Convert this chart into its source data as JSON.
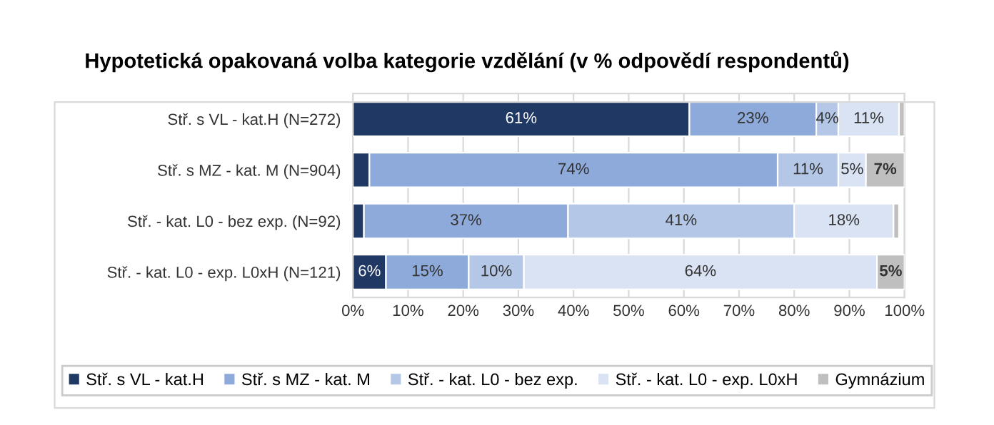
{
  "chart_data": {
    "type": "bar",
    "orientation": "horizontal",
    "stacked": true,
    "title": "Hypotetická opakovaná volba kategorie vzdělání (v % odpovědí respondentů)",
    "categories": [
      "Stř. s VL - kat.H (N=272)",
      "Stř. s MZ - kat. M (N=904)",
      "Stř. - kat. L0 - bez exp. (N=92)",
      "Stř. - kat. L0 - exp. L0xH (N=121)"
    ],
    "series": [
      {
        "name": "Stř. s VL - kat.H",
        "color": "#1f3864",
        "values": [
          61,
          3,
          2,
          6
        ],
        "value_labels": [
          "61%",
          null,
          null,
          "6%"
        ]
      },
      {
        "name": "Stř. s MZ - kat. M",
        "color": "#8eaadb",
        "values": [
          23,
          74,
          37,
          15
        ],
        "value_labels": [
          "23%",
          "74%",
          "37%",
          "15%"
        ]
      },
      {
        "name": "Stř. - kat. L0 - bez exp.",
        "color": "#b4c7e7",
        "values": [
          4,
          11,
          41,
          10
        ],
        "value_labels": [
          "4%",
          "11%",
          "41%",
          "10%"
        ]
      },
      {
        "name": "Stř. - kat. L0 - exp. L0xH",
        "color": "#dae3f3",
        "values": [
          11,
          5,
          18,
          64
        ],
        "value_labels": [
          "11%",
          "5%",
          "18%",
          "64%"
        ]
      },
      {
        "name": "Gymnázium",
        "color": "#bfbfbf",
        "values": [
          1,
          7,
          1,
          5
        ],
        "value_labels": [
          null,
          "7%",
          null,
          "5%"
        ]
      }
    ],
    "xlim": [
      0,
      100
    ],
    "xticks": [
      {
        "value": 0,
        "label": "0%"
      },
      {
        "value": 10,
        "label": "10%"
      },
      {
        "value": 20,
        "label": "20%"
      },
      {
        "value": 30,
        "label": "30%"
      },
      {
        "value": 40,
        "label": "40%"
      },
      {
        "value": 50,
        "label": "50%"
      },
      {
        "value": 60,
        "label": "60%"
      },
      {
        "value": 70,
        "label": "70%"
      },
      {
        "value": 80,
        "label": "80%"
      },
      {
        "value": 90,
        "label": "90%"
      },
      {
        "value": 100,
        "label": "100%"
      }
    ],
    "grid": "x",
    "legend": "bottom"
  }
}
